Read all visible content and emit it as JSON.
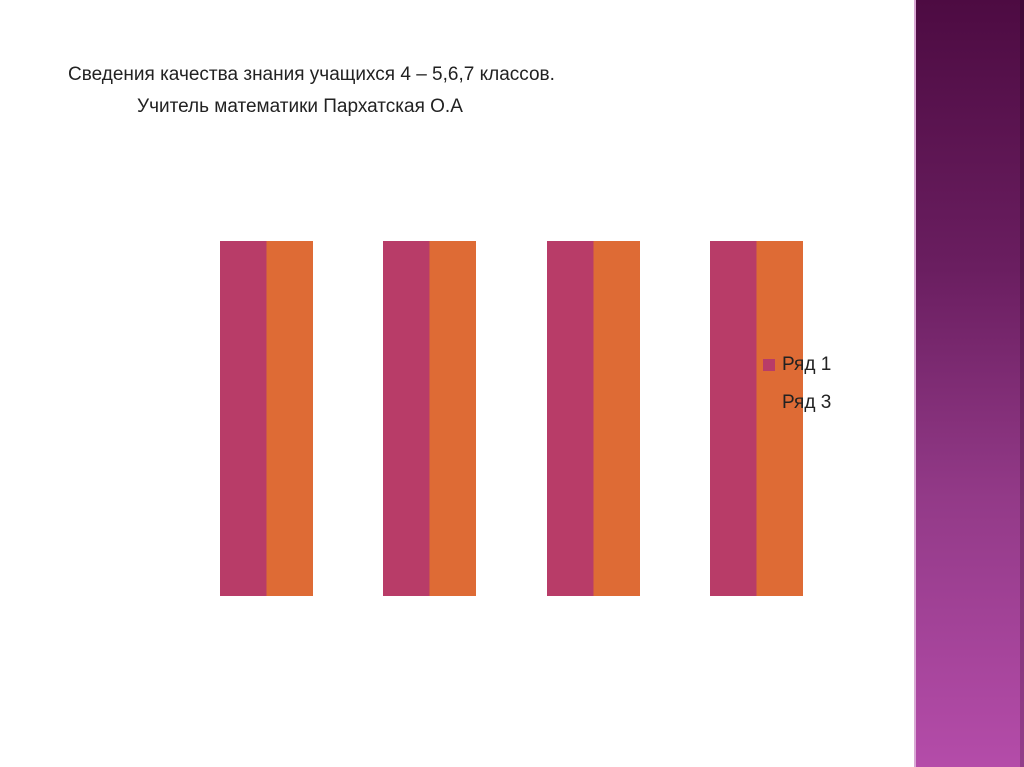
{
  "title": {
    "line1": "Сведения качества знания учащихся 4 – 5,6,7 классов.",
    "line2": "Учитель математики Пархатская О.А"
  },
  "colors": {
    "series1": "#b83c68",
    "series3": "#de6b35",
    "side_panel_top": "#4d0b42",
    "side_panel_bottom": "#b44ca9"
  },
  "chart_data": {
    "type": "bar",
    "categories": [
      "",
      "",
      "",
      ""
    ],
    "series": [
      {
        "name": "Ряд 1",
        "values": [
          1,
          1,
          1,
          1
        ],
        "color": "#b83c68"
      },
      {
        "name": "Ряд 3",
        "values": [
          1,
          1,
          1,
          1
        ],
        "color": "#de6b35"
      }
    ],
    "ylim": [
      0,
      1
    ],
    "grid": false,
    "axes_visible": false,
    "legend": "right"
  }
}
